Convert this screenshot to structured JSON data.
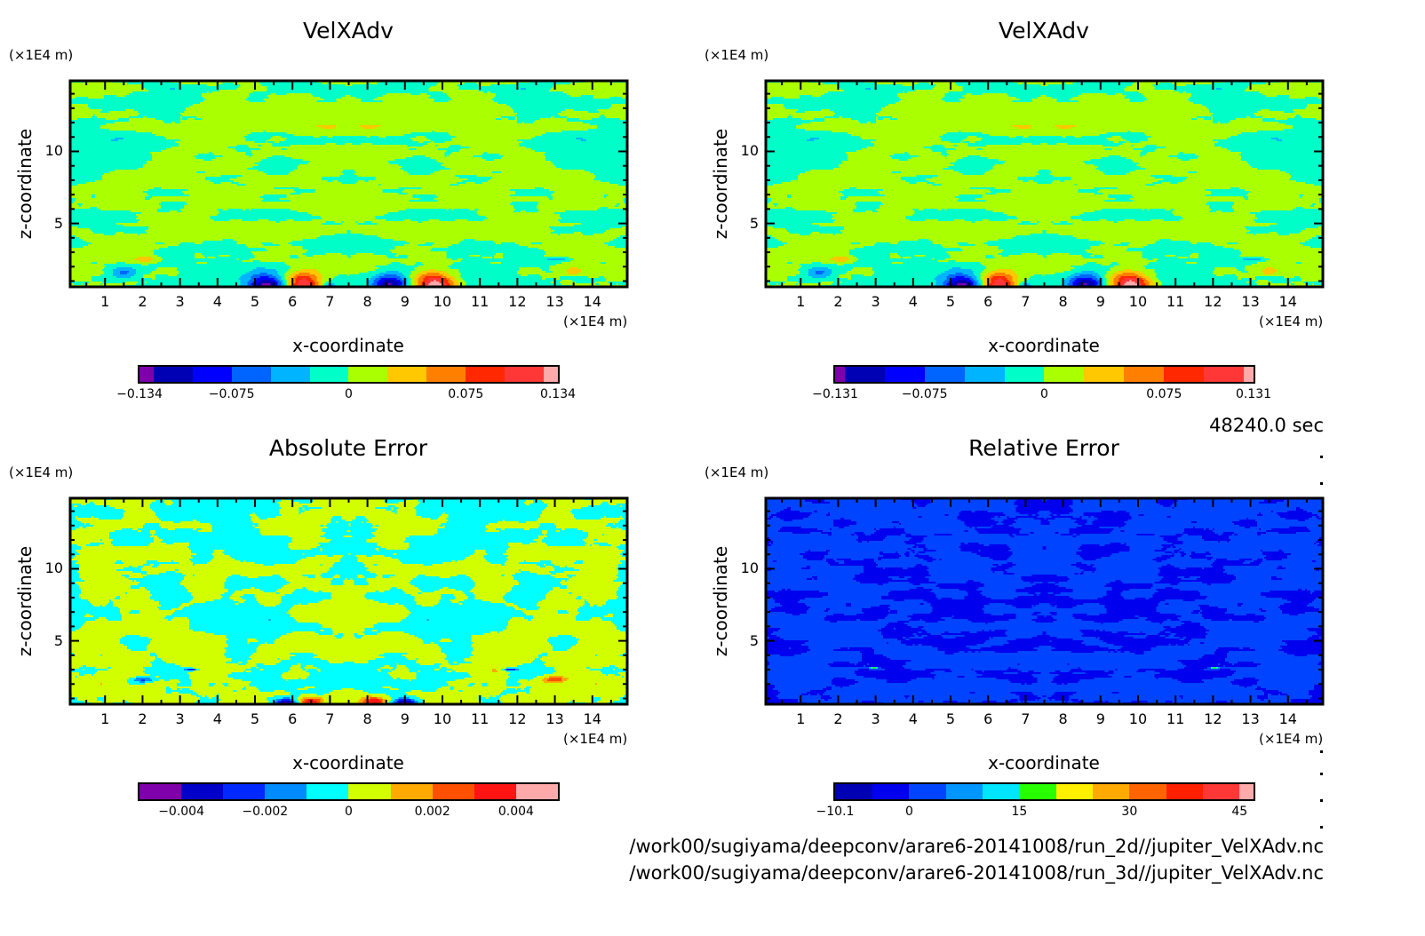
{
  "time_label": "48240.0 sec",
  "file_paths": [
    "/work00/sugiyama/deepconv/arare6-20141008/run_2d//jupiter_VelXAdv.nc",
    "/work00/sugiyama/deepconv/arare6-20141008/run_3d//jupiter_VelXAdv.nc"
  ],
  "chart_data": [
    {
      "type": "heatmap",
      "title": "VelXAdv",
      "xlabel": "x-coordinate",
      "ylabel": "z-coordinate",
      "x_unit": "(×1E4 m)",
      "y_unit": "(×1E4 m)",
      "xlim": [
        0.07,
        14.93
      ],
      "ylim": [
        0.6,
        14.9
      ],
      "xticks": [
        "1",
        "2",
        "3",
        "4",
        "5",
        "6",
        "7",
        "8",
        "9",
        "10",
        "11",
        "12",
        "13",
        "14"
      ],
      "yticks": [
        "5",
        "10"
      ],
      "colorbar": {
        "boundaries": [
          -0.134,
          -0.125,
          -0.1,
          -0.075,
          -0.05,
          -0.025,
          0,
          0.025,
          0.05,
          0.075,
          0.1,
          0.125,
          0.134
        ],
        "colors": [
          "#7f00aa",
          "#0000b4",
          "#0000ff",
          "#0064ff",
          "#00b4ff",
          "#00ffc8",
          "#aaff00",
          "#ffc800",
          "#ff7f00",
          "#ff2800",
          "#ff3737",
          "#ffaaaa"
        ],
        "labels": [
          "-0.134",
          "-0.075",
          "0",
          "0.075",
          "0.134"
        ],
        "label_values": [
          -0.134,
          -0.075,
          0,
          0.075,
          0.134
        ]
      },
      "background_amplitude": 0.028,
      "features": [
        {
          "x": 5.3,
          "z": 0.6,
          "value": -0.14,
          "sx": 0.5,
          "sz": 0.9
        },
        {
          "x": 6.3,
          "z": 0.8,
          "value": 0.13,
          "sx": 0.45,
          "sz": 0.8
        },
        {
          "x": 8.6,
          "z": 0.7,
          "value": -0.12,
          "sx": 0.45,
          "sz": 0.8
        },
        {
          "x": 9.8,
          "z": 0.7,
          "value": 0.14,
          "sx": 0.5,
          "sz": 0.9
        },
        {
          "x": 1.5,
          "z": 1.6,
          "value": -0.05,
          "sx": 0.35,
          "sz": 0.4
        },
        {
          "x": 2.1,
          "z": 2.5,
          "value": 0.045,
          "sx": 0.3,
          "sz": 0.2
        },
        {
          "x": 13.5,
          "z": 1.7,
          "value": 0.05,
          "sx": 0.3,
          "sz": 0.3
        },
        {
          "x": 13.1,
          "z": 2.5,
          "value": -0.045,
          "sx": 0.35,
          "sz": 0.15
        },
        {
          "x": 7.0,
          "z": 0.6,
          "value": -0.07,
          "sx": 0.15,
          "sz": 0.25
        }
      ]
    },
    {
      "type": "heatmap",
      "title": "VelXAdv",
      "xlabel": "x-coordinate",
      "ylabel": "z-coordinate",
      "x_unit": "(×1E4 m)",
      "y_unit": "(×1E4 m)",
      "xlim": [
        0.07,
        14.93
      ],
      "ylim": [
        0.6,
        14.9
      ],
      "xticks": [
        "1",
        "2",
        "3",
        "4",
        "5",
        "6",
        "7",
        "8",
        "9",
        "10",
        "11",
        "12",
        "13",
        "14"
      ],
      "yticks": [
        "5",
        "10"
      ],
      "colorbar": {
        "boundaries": [
          -0.131,
          -0.125,
          -0.1,
          -0.075,
          -0.05,
          -0.025,
          0,
          0.025,
          0.05,
          0.075,
          0.1,
          0.125,
          0.131
        ],
        "colors": [
          "#7f00aa",
          "#0000b4",
          "#0000ff",
          "#0064ff",
          "#00b4ff",
          "#00ffc8",
          "#aaff00",
          "#ffc800",
          "#ff7f00",
          "#ff2800",
          "#ff3737",
          "#ffaaaa"
        ],
        "labels": [
          "-0.131",
          "-0.075",
          "0",
          "0.075",
          "0.131"
        ],
        "label_values": [
          -0.131,
          -0.075,
          0,
          0.075,
          0.131
        ]
      },
      "background_amplitude": 0.028,
      "features": [
        {
          "x": 5.3,
          "z": 0.6,
          "value": -0.14,
          "sx": 0.5,
          "sz": 0.9
        },
        {
          "x": 6.3,
          "z": 0.8,
          "value": 0.13,
          "sx": 0.45,
          "sz": 0.8
        },
        {
          "x": 8.6,
          "z": 0.7,
          "value": -0.12,
          "sx": 0.45,
          "sz": 0.8
        },
        {
          "x": 9.8,
          "z": 0.7,
          "value": 0.14,
          "sx": 0.5,
          "sz": 0.9
        },
        {
          "x": 1.5,
          "z": 1.6,
          "value": -0.05,
          "sx": 0.35,
          "sz": 0.4
        },
        {
          "x": 2.1,
          "z": 2.5,
          "value": 0.045,
          "sx": 0.3,
          "sz": 0.2
        },
        {
          "x": 13.5,
          "z": 1.7,
          "value": 0.05,
          "sx": 0.3,
          "sz": 0.3
        },
        {
          "x": 13.1,
          "z": 2.5,
          "value": -0.045,
          "sx": 0.35,
          "sz": 0.15
        },
        {
          "x": 7.0,
          "z": 0.6,
          "value": -0.07,
          "sx": 0.15,
          "sz": 0.25
        }
      ]
    },
    {
      "type": "heatmap",
      "title": "Absolute Error",
      "xlabel": "x-coordinate",
      "ylabel": "z-coordinate",
      "x_unit": "(×1E4 m)",
      "y_unit": "(×1E4 m)",
      "xlim": [
        0.07,
        14.93
      ],
      "ylim": [
        0.6,
        14.9
      ],
      "xticks": [
        "1",
        "2",
        "3",
        "4",
        "5",
        "6",
        "7",
        "8",
        "9",
        "10",
        "11",
        "12",
        "13",
        "14"
      ],
      "yticks": [
        "5",
        "10"
      ],
      "colorbar": {
        "boundaries": [
          -0.005,
          -0.004,
          -0.003,
          -0.002,
          -0.001,
          0,
          0.001,
          0.002,
          0.003,
          0.004,
          0.005
        ],
        "colors": [
          "#7f00aa",
          "#0000c8",
          "#0028ff",
          "#008cff",
          "#00ffff",
          "#d2ff00",
          "#ffaa00",
          "#ff5000",
          "#ff1414",
          "#ffaaaa"
        ],
        "labels": [
          "-0.004",
          "-0.002",
          "0",
          "0.002",
          "0.004"
        ],
        "label_values": [
          -0.004,
          -0.002,
          0,
          0.002,
          0.004
        ]
      },
      "background_amplitude": 0.0011,
      "features": [
        {
          "x": 5.8,
          "z": 0.7,
          "value": -0.004,
          "sx": 0.3,
          "sz": 0.3
        },
        {
          "x": 6.5,
          "z": 0.8,
          "value": 0.004,
          "sx": 0.3,
          "sz": 0.3
        },
        {
          "x": 8.2,
          "z": 0.8,
          "value": 0.004,
          "sx": 0.3,
          "sz": 0.3
        },
        {
          "x": 9.0,
          "z": 0.7,
          "value": -0.004,
          "sx": 0.3,
          "sz": 0.3
        },
        {
          "x": 2.0,
          "z": 2.3,
          "value": -0.0025,
          "sx": 0.3,
          "sz": 0.2
        },
        {
          "x": 13.0,
          "z": 2.3,
          "value": 0.0025,
          "sx": 0.3,
          "sz": 0.2
        },
        {
          "x": 3.3,
          "z": 3.0,
          "value": -0.003,
          "sx": 0.2,
          "sz": 0.1
        },
        {
          "x": 11.8,
          "z": 3.0,
          "value": -0.003,
          "sx": 0.2,
          "sz": 0.1
        }
      ]
    },
    {
      "type": "heatmap",
      "title": "Relative Error",
      "xlabel": "x-coordinate",
      "ylabel": "z-coordinate",
      "x_unit": "(×1E4 m)",
      "y_unit": "(×1E4 m)",
      "xlim": [
        0.07,
        14.93
      ],
      "ylim": [
        0.6,
        14.9
      ],
      "xticks": [
        "1",
        "2",
        "3",
        "4",
        "5",
        "6",
        "7",
        "8",
        "9",
        "10",
        "11",
        "12",
        "13",
        "14"
      ],
      "yticks": [
        "5",
        "10"
      ],
      "colorbar": {
        "boundaries": [
          -10.1,
          -5,
          0,
          5,
          10,
          15,
          20,
          25,
          30,
          35,
          40,
          45,
          46.9
        ],
        "colors": [
          "#0000b4",
          "#0000ee",
          "#0044ff",
          "#0096ff",
          "#00e6ff",
          "#28ff00",
          "#fff000",
          "#ffaa00",
          "#ff6400",
          "#ff2000",
          "#ff3737",
          "#ffaaaa"
        ],
        "labels": [
          "-10.1",
          "0",
          "15",
          "30",
          "45"
        ],
        "label_values": [
          -10.1,
          0,
          15,
          30,
          45
        ]
      },
      "background_amplitude": 4.5,
      "features": [
        {
          "x": 2.95,
          "z": 3.1,
          "value": 25,
          "sx": 0.1,
          "sz": 0.06
        },
        {
          "x": 12.05,
          "z": 3.1,
          "value": 25,
          "sx": 0.1,
          "sz": 0.06
        }
      ]
    }
  ]
}
